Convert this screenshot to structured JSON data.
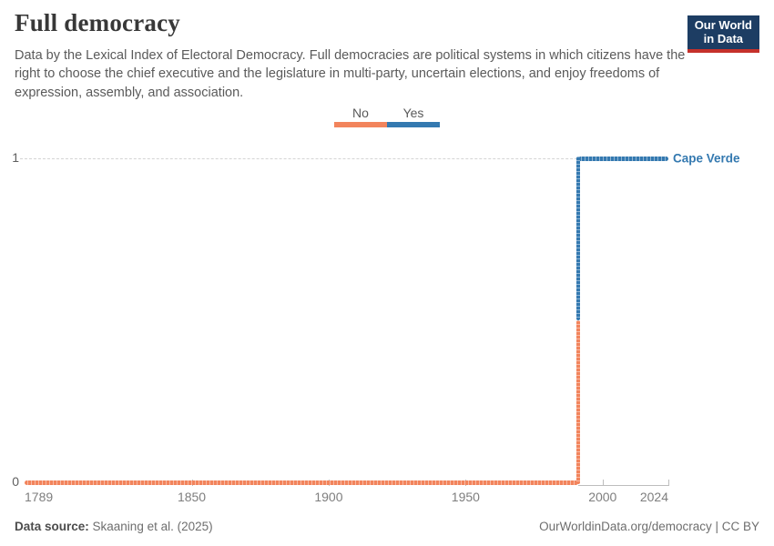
{
  "header": {
    "title": "Full democracy",
    "subtitle": "Data by the Lexical Index of Electoral Democracy. Full democracies are political systems in which citizens have the right to choose the chief executive and the legislature in multi-party, uncertain elections, and enjoy freedoms of expression, assembly, and association.",
    "logo": {
      "line1": "Our World",
      "line2": "in Data",
      "bg_color": "#1d3d63",
      "accent_color": "#c5312b"
    }
  },
  "legend": {
    "items": [
      {
        "label": "No",
        "color": "#F2845C"
      },
      {
        "label": "Yes",
        "color": "#3479B0"
      }
    ]
  },
  "chart_data": {
    "type": "line",
    "subtype": "step",
    "title": "Full democracy",
    "entity": "Cape Verde",
    "entity_label_color": "#3479B0",
    "steps": [
      {
        "label": "No",
        "value": 0,
        "from_year": 1789,
        "to_year": 1990,
        "color": "#F2845C"
      },
      {
        "label": "Yes",
        "value": 1,
        "from_year": 1991,
        "to_year": 2024,
        "color": "#3479B0"
      }
    ],
    "transition_year": 1991,
    "xlim": [
      1789,
      2024
    ],
    "ylim": [
      0,
      1
    ],
    "x_ticks": [
      1789,
      1850,
      1900,
      1950,
      2000,
      2024
    ],
    "y_ticks": [
      0,
      1
    ],
    "grid": "horizontal dashed gridline at y=1 only",
    "legend_position": "top-center",
    "xlabel": "",
    "ylabel": ""
  },
  "footer": {
    "source_label": "Data source:",
    "source_value": " Skaaning et al. (2025)",
    "link": "OurWorldinData.org/democracy | CC BY"
  }
}
